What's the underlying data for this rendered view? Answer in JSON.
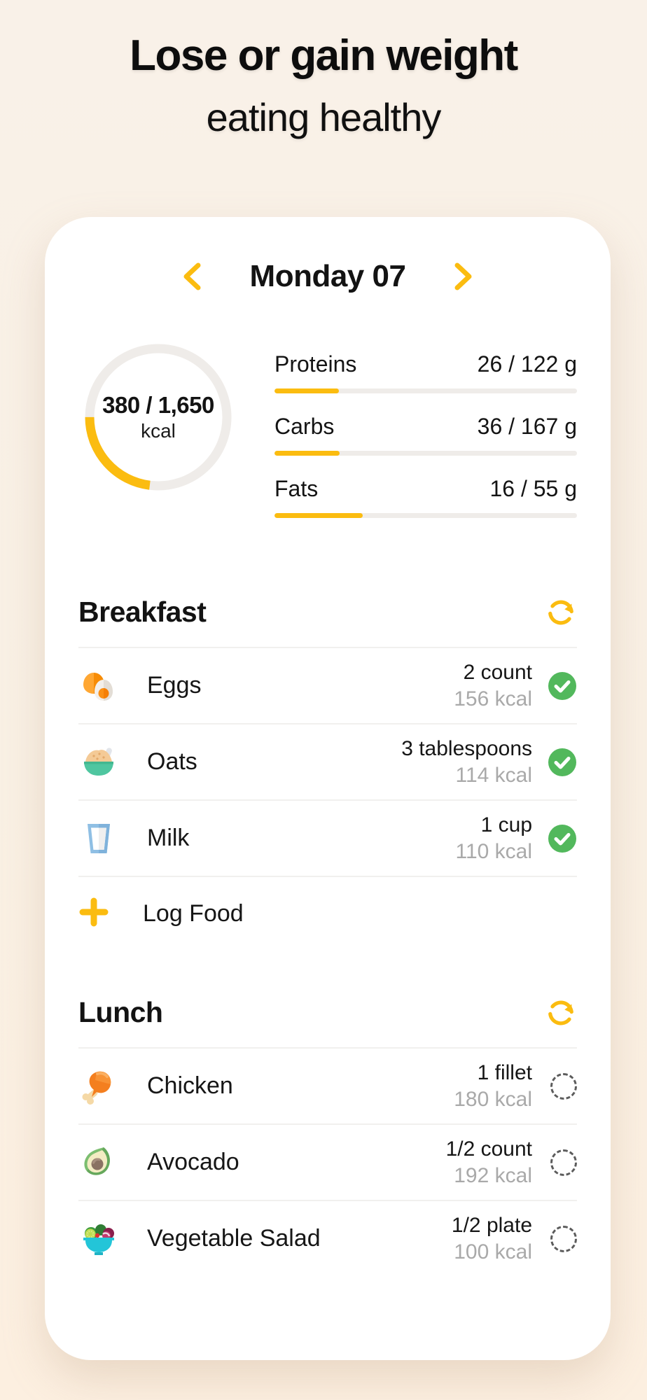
{
  "colors": {
    "background": "#F9F0E4",
    "card": "#FFFFFF",
    "accent_yellow": "#FBBC10",
    "check_green": "#52B85C",
    "track_gray": "#EFECE9",
    "muted_text": "#A9A9A9"
  },
  "header": {
    "title": "Lose or gain weight",
    "subtitle": "eating healthy"
  },
  "card": {
    "date_nav": {
      "label": "Monday 07",
      "prev_icon": "chevron-left-icon",
      "next_icon": "chevron-right-icon"
    },
    "calories": {
      "value": "380 / 1,650",
      "unit": "kcal",
      "current": 380,
      "target": 1650
    },
    "macros": [
      {
        "label": "Proteins",
        "value": "26 / 122 g",
        "current": 26,
        "target": 122
      },
      {
        "label": "Carbs",
        "value": "36 / 167 g",
        "current": 36,
        "target": 167
      },
      {
        "label": "Fats",
        "value": "16 / 55 g",
        "current": 16,
        "target": 55
      }
    ],
    "meals": [
      {
        "title": "Breakfast",
        "refresh_icon": "refresh-icon",
        "items": [
          {
            "name": "Eggs",
            "serving": "2 count",
            "kcal": "156 kcal",
            "checked": true,
            "icon": "eggs-icon"
          },
          {
            "name": "Oats",
            "serving": "3 tablespoons",
            "kcal": "114 kcal",
            "checked": true,
            "icon": "oats-icon"
          },
          {
            "name": "Milk",
            "serving": "1 cup",
            "kcal": "110 kcal",
            "checked": true,
            "icon": "milk-icon"
          }
        ],
        "log_label": "Log Food"
      },
      {
        "title": "Lunch",
        "refresh_icon": "refresh-icon",
        "items": [
          {
            "name": "Chicken",
            "serving": "1 fillet",
            "kcal": "180 kcal",
            "checked": false,
            "icon": "chicken-icon"
          },
          {
            "name": "Avocado",
            "serving": "1/2 count",
            "kcal": "192 kcal",
            "checked": false,
            "icon": "avocado-icon"
          },
          {
            "name": "Vegetable Salad",
            "serving": "1/2 plate",
            "kcal": "100 kcal",
            "checked": false,
            "icon": "salad-icon"
          }
        ]
      }
    ]
  }
}
